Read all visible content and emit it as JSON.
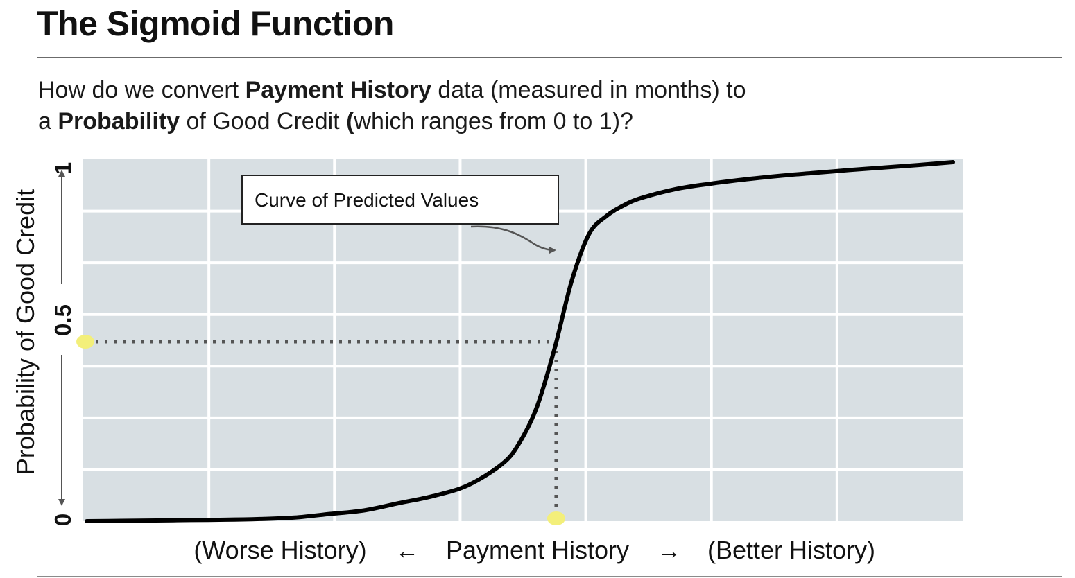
{
  "slide": {
    "title": "The Sigmoid Function",
    "question": {
      "line1_pre": "How do we convert ",
      "line1_bold": "Payment History",
      "line1_post": " data (measured in months) to",
      "line2_pre": "a ",
      "line2_bold": "Probability",
      "line2_mid": " of Good Credit ",
      "line2_paren": "(",
      "line2_post": "which ranges from 0 to 1)?"
    }
  },
  "colors": {
    "plot_background": "#d8dfe3",
    "grid": "#ffffff",
    "curve": "#000000",
    "guide": "#555555",
    "marker": "#f3ef7a",
    "arrow": "#555555"
  },
  "chart_data": {
    "type": "line",
    "title": "",
    "xlabel": "Payment History",
    "x_left_label": "(Worse History)",
    "x_right_label": "(Better History)",
    "x_left_arrow": "←",
    "x_right_arrow": "→",
    "ylabel": "Probability of Good Credit",
    "ylim": [
      0,
      1
    ],
    "y_ticks": [
      "0",
      "0.5",
      "1"
    ],
    "y_tick_values": [
      0,
      0.5,
      1
    ],
    "grid": true,
    "x_tick_labels_shown": false,
    "series": [
      {
        "x": [
          0.0,
          0.04,
          0.08,
          0.12,
          0.16,
          0.2,
          0.24,
          0.28,
          0.32,
          0.36,
          0.4,
          0.44,
          0.48,
          0.5,
          0.52,
          0.54,
          0.56,
          0.58,
          0.6,
          0.62,
          0.64,
          0.68,
          0.72,
          0.76,
          0.8,
          0.84,
          0.88,
          0.92,
          0.96,
          1.0
        ],
        "y": [
          0.0,
          0.001,
          0.002,
          0.003,
          0.004,
          0.006,
          0.01,
          0.02,
          0.03,
          0.05,
          0.07,
          0.1,
          0.16,
          0.22,
          0.32,
          0.48,
          0.67,
          0.8,
          0.85,
          0.88,
          0.9,
          0.925,
          0.94,
          0.952,
          0.962,
          0.97,
          0.978,
          0.985,
          0.992,
          1.0
        ]
      }
    ],
    "annotations": [
      {
        "text": "Curve of Predicted Values",
        "points_to": "curve"
      }
    ],
    "highlight_points": [
      {
        "x": 0.0,
        "y": 0.5,
        "note": "y-axis marker"
      },
      {
        "x": 0.542,
        "y": 0.0,
        "note": "x-axis marker"
      }
    ],
    "guide_lines": [
      {
        "from": [
          0.0,
          0.5
        ],
        "to": [
          0.542,
          0.5
        ],
        "style": "dotted"
      },
      {
        "from": [
          0.542,
          0.5
        ],
        "to": [
          0.542,
          0.0
        ],
        "style": "dotted"
      }
    ]
  }
}
